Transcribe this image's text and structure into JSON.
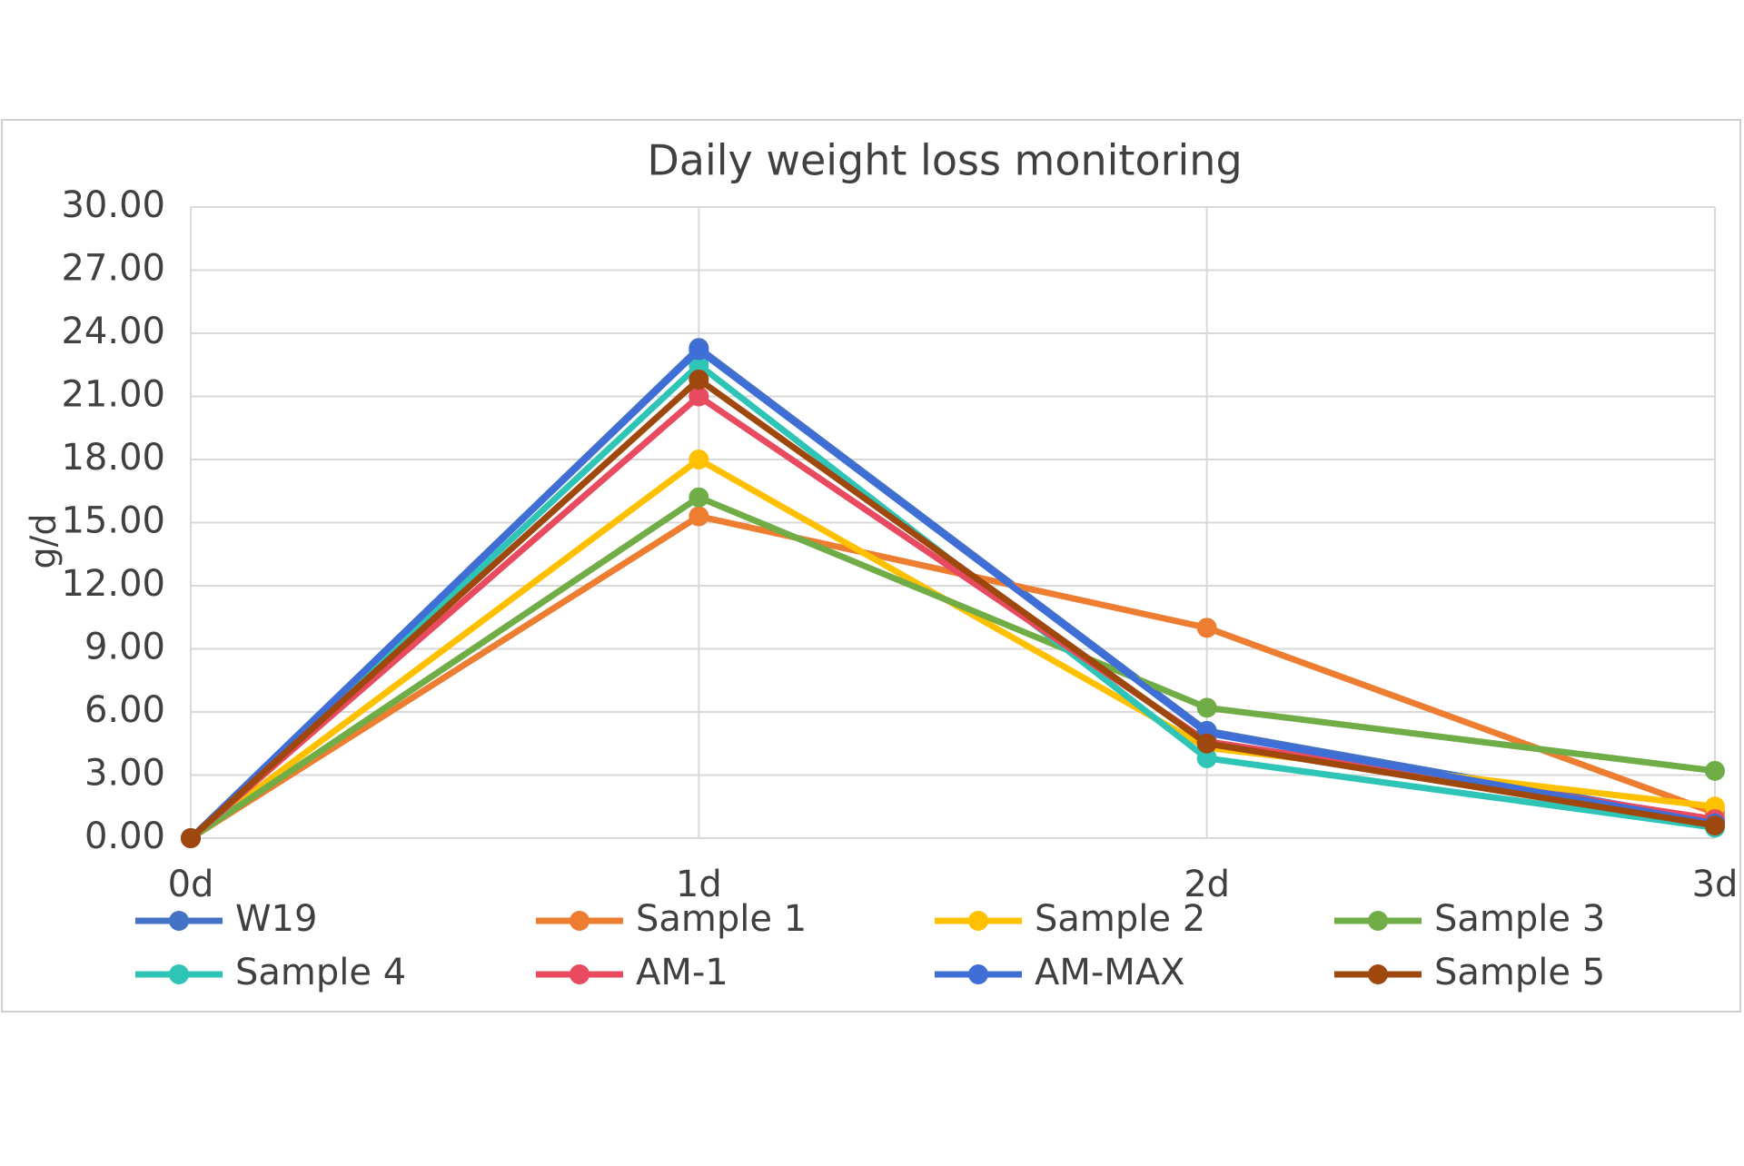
{
  "chart_data": {
    "type": "line",
    "title": "Daily weight loss monitoring",
    "y_label": "g/d",
    "categories": [
      "0d",
      "1d",
      "2d",
      "3d"
    ],
    "ylim": [
      0,
      30
    ],
    "yticks": [
      {
        "value": 0,
        "label": "0.00"
      },
      {
        "value": 3,
        "label": "3.00"
      },
      {
        "value": 6,
        "label": "6.00"
      },
      {
        "value": 9,
        "label": "9.00"
      },
      {
        "value": 12,
        "label": "12.00"
      },
      {
        "value": 15,
        "label": "15.00"
      },
      {
        "value": 18,
        "label": "18.00"
      },
      {
        "value": 21,
        "label": "21.00"
      },
      {
        "value": 24,
        "label": "24.00"
      },
      {
        "value": 27,
        "label": "27.00"
      },
      {
        "value": 30,
        "label": "30.00"
      }
    ],
    "grid": true,
    "series": [
      {
        "name": "W19",
        "color": "#4472c4",
        "values": [
          0,
          23.3,
          5.1,
          0.8
        ]
      },
      {
        "name": "Sample 1",
        "color": "#ed7d31",
        "values": [
          0,
          15.3,
          10.0,
          1.2
        ]
      },
      {
        "name": "Sample 2",
        "color": "#ffc000",
        "values": [
          0,
          18.0,
          4.3,
          1.5
        ]
      },
      {
        "name": "Sample 3",
        "color": "#70ad47",
        "values": [
          0,
          16.2,
          6.2,
          3.2
        ]
      },
      {
        "name": "Sample 4",
        "color": "#2ec4b6",
        "values": [
          0,
          22.5,
          3.8,
          0.5
        ]
      },
      {
        "name": "AM-1",
        "color": "#e84a5f",
        "values": [
          0,
          21.0,
          4.6,
          0.9
        ]
      },
      {
        "name": "AM-MAX",
        "color": "#3f6fd6",
        "values": [
          0,
          23.2,
          5.0,
          0.7
        ]
      },
      {
        "name": "Sample 5",
        "color": "#9e480e",
        "values": [
          0,
          21.8,
          4.5,
          0.6
        ]
      }
    ]
  }
}
